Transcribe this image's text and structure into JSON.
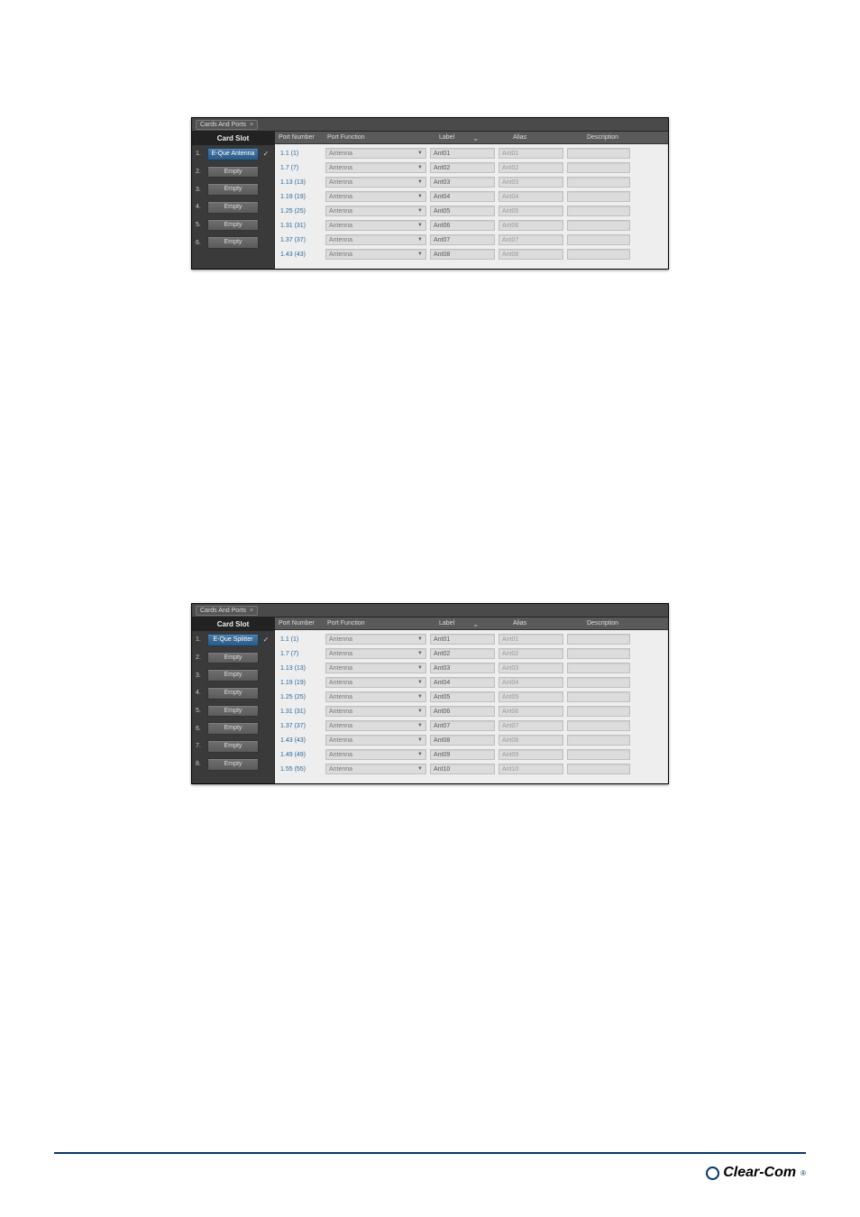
{
  "panel1": {
    "tab_label": "Cards And Ports",
    "sidebar_header": "Card Slot",
    "columns": {
      "pn": "Port Number",
      "pf": "Port Function",
      "lab": "Label",
      "ali": "Alias",
      "des": "Description"
    },
    "slots": [
      {
        "num": "1.",
        "label": "E-Que Antenna",
        "selected": true,
        "checked": true
      },
      {
        "num": "2.",
        "label": "Empty",
        "selected": false,
        "checked": false
      },
      {
        "num": "3.",
        "label": "Empty",
        "selected": false,
        "checked": false
      },
      {
        "num": "4.",
        "label": "Empty",
        "selected": false,
        "checked": false
      },
      {
        "num": "5.",
        "label": "Empty",
        "selected": false,
        "checked": false
      },
      {
        "num": "6.",
        "label": "Empty",
        "selected": false,
        "checked": false
      }
    ],
    "rows": [
      {
        "pn": "1.1 (1)",
        "pf": "Antenna",
        "lab": "Ant01",
        "ali": "Ant01"
      },
      {
        "pn": "1.7 (7)",
        "pf": "Antenna",
        "lab": "Ant02",
        "ali": "Ant02"
      },
      {
        "pn": "1.13 (13)",
        "pf": "Antenna",
        "lab": "Ant03",
        "ali": "Ant03"
      },
      {
        "pn": "1.19 (19)",
        "pf": "Antenna",
        "lab": "Ant04",
        "ali": "Ant04"
      },
      {
        "pn": "1.25 (25)",
        "pf": "Antenna",
        "lab": "Ant05",
        "ali": "Ant05"
      },
      {
        "pn": "1.31 (31)",
        "pf": "Antenna",
        "lab": "Ant06",
        "ali": "Ant06"
      },
      {
        "pn": "1.37 (37)",
        "pf": "Antenna",
        "lab": "Ant07",
        "ali": "Ant07"
      },
      {
        "pn": "1.43 (43)",
        "pf": "Antenna",
        "lab": "Ant08",
        "ali": "Ant08"
      }
    ]
  },
  "panel2": {
    "tab_label": "Cards And Ports",
    "sidebar_header": "Card Slot",
    "columns": {
      "pn": "Port Number",
      "pf": "Port Function",
      "lab": "Label",
      "ali": "Alias",
      "des": "Description"
    },
    "slots": [
      {
        "num": "1.",
        "label": "E-Que Splitter",
        "selected": true,
        "checked": true
      },
      {
        "num": "2.",
        "label": "Empty",
        "selected": false,
        "checked": false
      },
      {
        "num": "3.",
        "label": "Empty",
        "selected": false,
        "checked": false
      },
      {
        "num": "4.",
        "label": "Empty",
        "selected": false,
        "checked": false
      },
      {
        "num": "5.",
        "label": "Empty",
        "selected": false,
        "checked": false
      },
      {
        "num": "6.",
        "label": "Empty",
        "selected": false,
        "checked": false
      },
      {
        "num": "7.",
        "label": "Empty",
        "selected": false,
        "checked": false
      },
      {
        "num": "8.",
        "label": "Empty",
        "selected": false,
        "checked": false
      }
    ],
    "rows": [
      {
        "pn": "1.1 (1)",
        "pf": "Antenna",
        "lab": "Ant01",
        "ali": "Ant01"
      },
      {
        "pn": "1.7 (7)",
        "pf": "Antenna",
        "lab": "Ant02",
        "ali": "Ant02"
      },
      {
        "pn": "1.13 (13)",
        "pf": "Antenna",
        "lab": "Ant03",
        "ali": "Ant03"
      },
      {
        "pn": "1.19 (19)",
        "pf": "Antenna",
        "lab": "Ant04",
        "ali": "Ant04"
      },
      {
        "pn": "1.25 (25)",
        "pf": "Antenna",
        "lab": "Ant05",
        "ali": "Ant05"
      },
      {
        "pn": "1.31 (31)",
        "pf": "Antenna",
        "lab": "Ant06",
        "ali": "Ant06"
      },
      {
        "pn": "1.37 (37)",
        "pf": "Antenna",
        "lab": "Ant07",
        "ali": "Ant07"
      },
      {
        "pn": "1.43 (43)",
        "pf": "Antenna",
        "lab": "Ant08",
        "ali": "Ant08"
      },
      {
        "pn": "1.49 (49)",
        "pf": "Antenna",
        "lab": "Ant09",
        "ali": "Ant09"
      },
      {
        "pn": "1.55 (55)",
        "pf": "Antenna",
        "lab": "Ant10",
        "ali": "Ant10"
      }
    ]
  },
  "footer_brand": "Clear-Com",
  "colors": {
    "panel_bg": "#3a3a3a",
    "content_bg": "#eeeeee",
    "header_text": "#dddddd",
    "link_blue": "#2b6a9c",
    "field_bg": "#dcdcdc",
    "field_border": "#bfbfbf",
    "slot_selected_top": "#4a7aa6",
    "slot_selected_bot": "#2a5a86",
    "footer_rule": "#0a3a6a"
  }
}
